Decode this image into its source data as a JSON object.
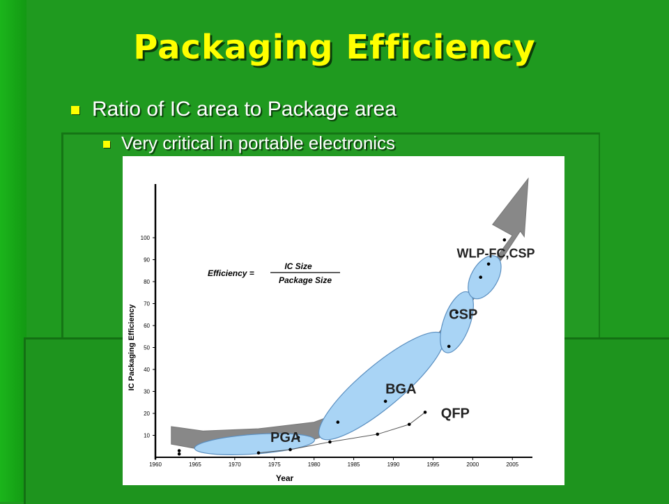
{
  "slide": {
    "title": "Packaging Efficiency",
    "bullet1": "Ratio of IC area to Package area",
    "bullet2": "Very critical in portable electronics"
  },
  "chart_data": {
    "type": "scatter",
    "xlabel": "Year",
    "ylabel": "IC Packaging Efficiency",
    "xlim": [
      1960,
      2007
    ],
    "ylim": [
      0,
      100
    ],
    "x_ticks": [
      1960,
      1965,
      1970,
      1975,
      1980,
      1985,
      1990,
      1995,
      2000,
      2005
    ],
    "y_ticks": [
      10,
      20,
      30,
      40,
      50,
      60,
      70,
      80,
      90,
      100
    ],
    "formula": {
      "lhs": "Efficiency =",
      "numerator": "IC Size",
      "denominator": "Package Size"
    },
    "colors": {
      "trend_arrow": "#888888",
      "ellipse_fill": "#a9d4f5",
      "ellipse_stroke": "#5b8fc0"
    },
    "package_regions": [
      {
        "label": "PGA",
        "x": [
          1965,
          1980
        ],
        "y": [
          2,
          10
        ],
        "tilt": -4,
        "label_at": [
          1974.5,
          7
        ]
      },
      {
        "label": "BGA",
        "x": [
          1980,
          1997
        ],
        "y": [
          13,
          52
        ],
        "tilt": -40,
        "label_at": [
          1989,
          29
        ]
      },
      {
        "label": "CSP",
        "x": [
          1995.5,
          2000.5
        ],
        "y": [
          50,
          73
        ],
        "tilt": -70,
        "label_at": [
          1997,
          63
        ]
      },
      {
        "label": "WLP-FC,CSP",
        "x": [
          1999.5,
          2003.5
        ],
        "y": [
          74,
          90
        ],
        "tilt": -60,
        "label_at": [
          1998,
          91
        ]
      }
    ],
    "series": [
      {
        "name": "QFP",
        "label_at": [
          1996,
          18
        ],
        "x": [
          1973,
          1977,
          1982,
          1988,
          1992,
          1994
        ],
        "y": [
          2,
          3.5,
          7,
          10.5,
          15,
          20.5
        ]
      }
    ],
    "points": {
      "x": [
        1963,
        1963,
        1978,
        1983,
        1989,
        1997,
        1998,
        2001,
        2002,
        2004
      ],
      "y": [
        1.5,
        3,
        9,
        16,
        25.5,
        50.5,
        66,
        82,
        88,
        99
      ]
    }
  }
}
